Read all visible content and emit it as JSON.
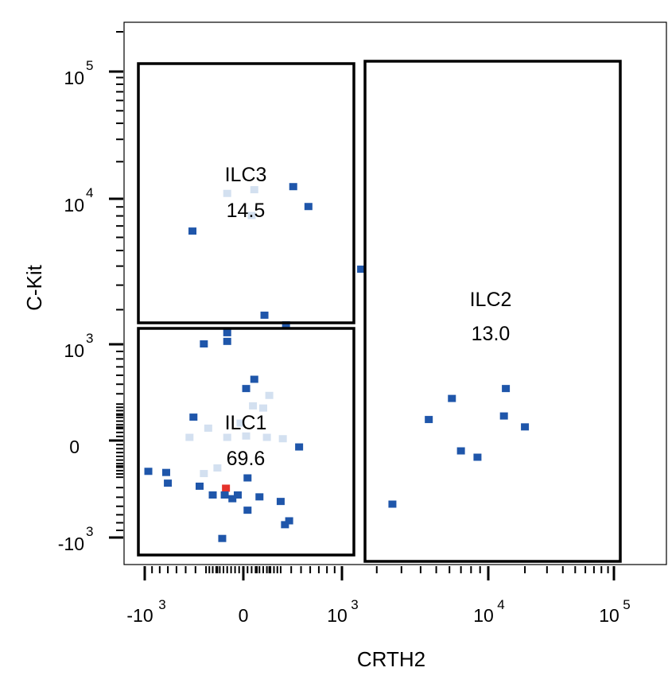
{
  "chart_data": {
    "type": "scatter",
    "title": "",
    "xlabel": "CRTH2",
    "ylabel": "C-Kit",
    "x_scale": "biexponential",
    "y_scale": "biexponential",
    "xlim": [
      -3000,
      120000
    ],
    "ylim": [
      -1500,
      200000
    ],
    "grid": false,
    "legend": "none",
    "x_ticks": [
      {
        "base": "-10",
        "exp": "3",
        "value": -1000
      },
      {
        "base": "0",
        "exp": "",
        "value": 0
      },
      {
        "base": "10",
        "exp": "3",
        "value": 1000
      },
      {
        "base": "10",
        "exp": "4",
        "value": 10000
      },
      {
        "base": "10",
        "exp": "5",
        "value": 100000
      }
    ],
    "y_ticks": [
      {
        "base": "10",
        "exp": "5",
        "value": 100000
      },
      {
        "base": "10",
        "exp": "4",
        "value": 10000
      },
      {
        "base": "10",
        "exp": "3",
        "value": 1000
      },
      {
        "base": "0",
        "exp": "",
        "value": 0
      },
      {
        "base": "-10",
        "exp": "3",
        "value": -1000
      }
    ],
    "gates": [
      {
        "name": "ILC3",
        "percent": "14.5",
        "x_range": [
          -1300,
          1100
        ],
        "y_range": [
          1450,
          115000
        ]
      },
      {
        "name": "ILC1",
        "percent": "69.6",
        "x_range": [
          -1300,
          1100
        ],
        "y_range": [
          -1200,
          1300
        ]
      },
      {
        "name": "ILC2",
        "percent": "13.0",
        "x_range": [
          1200,
          110000
        ],
        "y_range": [
          -1200,
          120000
        ]
      }
    ],
    "density_colors": {
      "low": "#d3e0f0",
      "mid": "#1f56aa",
      "high": "#e5322b"
    },
    "points": [
      {
        "x": -120,
        "y": 11000,
        "d": "low"
      },
      {
        "x": 80,
        "y": 11800,
        "d": "low"
      },
      {
        "x": 420,
        "y": 12500,
        "d": "mid"
      },
      {
        "x": 580,
        "y": 9000,
        "d": "mid"
      },
      {
        "x": -430,
        "y": 6500,
        "d": "mid"
      },
      {
        "x": 60,
        "y": 8000,
        "d": "low"
      },
      {
        "x": 1500,
        "y": 3800,
        "d": "mid"
      },
      {
        "x": 160,
        "y": 1800,
        "d": "mid"
      },
      {
        "x": 350,
        "y": 1500,
        "d": "mid"
      },
      {
        "x": -120,
        "y": 1280,
        "d": "mid"
      },
      {
        "x": -320,
        "y": 1000,
        "d": "mid"
      },
      {
        "x": -120,
        "y": 1060,
        "d": "mid"
      },
      {
        "x": 80,
        "y": 550,
        "d": "mid"
      },
      {
        "x": 20,
        "y": 450,
        "d": "mid"
      },
      {
        "x": 200,
        "y": 380,
        "d": "low"
      },
      {
        "x": 70,
        "y": 280,
        "d": "low"
      },
      {
        "x": 150,
        "y": 260,
        "d": "low"
      },
      {
        "x": -420,
        "y": 180,
        "d": "mid"
      },
      {
        "x": -280,
        "y": 90,
        "d": "low"
      },
      {
        "x": -20,
        "y": 130,
        "d": "low"
      },
      {
        "x": -460,
        "y": 20,
        "d": "low"
      },
      {
        "x": -120,
        "y": 20,
        "d": "low"
      },
      {
        "x": 20,
        "y": 30,
        "d": "low"
      },
      {
        "x": 180,
        "y": 20,
        "d": "low"
      },
      {
        "x": 320,
        "y": 10,
        "d": "low"
      },
      {
        "x": 480,
        "y": -50,
        "d": "mid"
      },
      {
        "x": -950,
        "y": -250,
        "d": "mid"
      },
      {
        "x": -720,
        "y": -260,
        "d": "mid"
      },
      {
        "x": -320,
        "y": -270,
        "d": "low"
      },
      {
        "x": -200,
        "y": -220,
        "d": "low"
      },
      {
        "x": 30,
        "y": -310,
        "d": "mid"
      },
      {
        "x": -700,
        "y": -360,
        "d": "mid"
      },
      {
        "x": -360,
        "y": -390,
        "d": "mid"
      },
      {
        "x": -130,
        "y": -410,
        "d": "high"
      },
      {
        "x": -240,
        "y": -480,
        "d": "mid"
      },
      {
        "x": -140,
        "y": -480,
        "d": "mid"
      },
      {
        "x": -80,
        "y": -520,
        "d": "mid"
      },
      {
        "x": -40,
        "y": -480,
        "d": "mid"
      },
      {
        "x": 120,
        "y": -500,
        "d": "mid"
      },
      {
        "x": 300,
        "y": -550,
        "d": "mid"
      },
      {
        "x": 30,
        "y": -650,
        "d": "mid"
      },
      {
        "x": 380,
        "y": -780,
        "d": "mid"
      },
      {
        "x": 340,
        "y": -830,
        "d": "mid"
      },
      {
        "x": -160,
        "y": -1100,
        "d": "mid"
      },
      {
        "x": 6200,
        "y": 350,
        "d": "mid"
      },
      {
        "x": 14000,
        "y": 450,
        "d": "mid"
      },
      {
        "x": 4500,
        "y": 160,
        "d": "mid"
      },
      {
        "x": 13500,
        "y": 190,
        "d": "mid"
      },
      {
        "x": 20000,
        "y": 100,
        "d": "mid"
      },
      {
        "x": 7000,
        "y": -80,
        "d": "mid"
      },
      {
        "x": 8700,
        "y": -130,
        "d": "mid"
      },
      {
        "x": 2600,
        "y": -580,
        "d": "mid"
      }
    ]
  }
}
